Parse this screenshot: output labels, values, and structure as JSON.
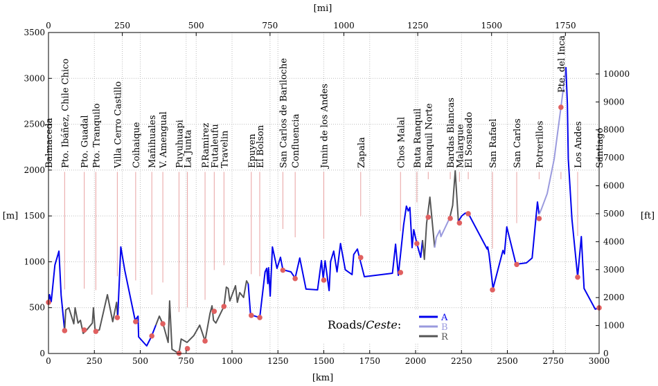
{
  "chart_data": {
    "type": "line",
    "title": "",
    "xlabel": "[km]",
    "x2label": "[mi]",
    "ylabel": "[m]",
    "y2label": "[ft]",
    "xlim": [
      0,
      3000
    ],
    "ylim": [
      0,
      3500
    ],
    "x_ticks": [
      0,
      250,
      500,
      750,
      1000,
      1250,
      1500,
      1750,
      2000,
      2250,
      2500,
      2750,
      3000
    ],
    "y_ticks": [
      0,
      500,
      1000,
      1500,
      2000,
      2500,
      3000,
      3500
    ],
    "x2_ticks_mi": [
      0,
      250,
      500,
      750,
      1000,
      1250,
      1500,
      1750
    ],
    "y2_ticks_ft": [
      0,
      1000,
      2000,
      3000,
      4000,
      5000,
      6000,
      7000,
      8000,
      9000,
      10000
    ],
    "grid": true,
    "legend": {
      "title": "Roads/",
      "title_italic": "Ceste",
      "title_suffix": ":",
      "placement": "bottom-center",
      "entries": [
        {
          "name": "A",
          "color": "#0000ee"
        },
        {
          "name": "B",
          "color": "#9a9ade"
        },
        {
          "name": "R",
          "color": "#555555"
        }
      ]
    },
    "colors": {
      "A": "#0000ee",
      "B": "#9a9ade",
      "R": "#555555",
      "marker": "#e06060",
      "marker_line": "#e8a0a0"
    },
    "profile": [
      [
        0,
        558,
        "A"
      ],
      [
        6,
        641,
        "A"
      ],
      [
        15,
        566,
        "A"
      ],
      [
        35,
        965,
        "A"
      ],
      [
        57,
        1116,
        "A"
      ],
      [
        69,
        634,
        "A"
      ],
      [
        88,
        249,
        "A"
      ],
      [
        94,
        475,
        "R"
      ],
      [
        111,
        498,
        "R"
      ],
      [
        138,
        324,
        "R"
      ],
      [
        145,
        498,
        "R"
      ],
      [
        161,
        332,
        "R"
      ],
      [
        174,
        362,
        "R"
      ],
      [
        189,
        219,
        "R"
      ],
      [
        208,
        256,
        "R"
      ],
      [
        239,
        332,
        "R"
      ],
      [
        245,
        498,
        "R"
      ],
      [
        254,
        249,
        "R"
      ],
      [
        277,
        256,
        "R"
      ],
      [
        321,
        641,
        "R"
      ],
      [
        350,
        347,
        "R"
      ],
      [
        371,
        558,
        "R"
      ],
      [
        377,
        385,
        "R"
      ],
      [
        394,
        1162,
        "A"
      ],
      [
        415,
        913,
        "A"
      ],
      [
        472,
        362,
        "A"
      ],
      [
        488,
        407,
        "A"
      ],
      [
        491,
        181,
        "A"
      ],
      [
        535,
        83,
        "A"
      ],
      [
        560,
        181,
        "A"
      ],
      [
        585,
        309,
        "A"
      ],
      [
        604,
        407,
        "R"
      ],
      [
        626,
        309,
        "R"
      ],
      [
        652,
        121,
        "R"
      ],
      [
        660,
        573,
        "R"
      ],
      [
        673,
        45,
        "R"
      ],
      [
        692,
        23,
        "R"
      ],
      [
        711,
        0,
        "R"
      ],
      [
        723,
        158,
        "R"
      ],
      [
        755,
        121,
        "R"
      ],
      [
        792,
        196,
        "R"
      ],
      [
        824,
        309,
        "R"
      ],
      [
        853,
        136,
        "R"
      ],
      [
        880,
        437,
        "R"
      ],
      [
        891,
        520,
        "R"
      ],
      [
        899,
        362,
        "R"
      ],
      [
        912,
        332,
        "R"
      ],
      [
        956,
        513,
        "R"
      ],
      [
        969,
        724,
        "R"
      ],
      [
        979,
        709,
        "R"
      ],
      [
        988,
        573,
        "R"
      ],
      [
        1019,
        739,
        "R"
      ],
      [
        1029,
        558,
        "R"
      ],
      [
        1042,
        664,
        "R"
      ],
      [
        1063,
        611,
        "R"
      ],
      [
        1079,
        792,
        "R"
      ],
      [
        1088,
        762,
        "R"
      ],
      [
        1101,
        422,
        "A"
      ],
      [
        1151,
        392,
        "A"
      ],
      [
        1180,
        890,
        "A"
      ],
      [
        1189,
        928,
        "A"
      ],
      [
        1195,
        762,
        "A"
      ],
      [
        1199,
        935,
        "A"
      ],
      [
        1208,
        626,
        "A"
      ],
      [
        1220,
        1162,
        "A"
      ],
      [
        1245,
        928,
        "A"
      ],
      [
        1264,
        1049,
        "A"
      ],
      [
        1277,
        913,
        "A"
      ],
      [
        1321,
        890,
        "A"
      ],
      [
        1344,
        822,
        "A"
      ],
      [
        1369,
        1041,
        "A"
      ],
      [
        1403,
        702,
        "A"
      ],
      [
        1466,
        694,
        "A"
      ],
      [
        1487,
        1013,
        "A"
      ],
      [
        1497,
        815,
        "A"
      ],
      [
        1507,
        1011,
        "A"
      ],
      [
        1529,
        686,
        "A"
      ],
      [
        1537,
        1003,
        "A"
      ],
      [
        1554,
        1116,
        "A"
      ],
      [
        1572,
        890,
        "A"
      ],
      [
        1591,
        1199,
        "A"
      ],
      [
        1617,
        913,
        "A"
      ],
      [
        1654,
        860,
        "A"
      ],
      [
        1663,
        1079,
        "A"
      ],
      [
        1683,
        1139,
        "A"
      ],
      [
        1692,
        1064,
        "A"
      ],
      [
        1721,
        837,
        "A"
      ],
      [
        1874,
        875,
        "A"
      ],
      [
        1891,
        1192,
        "A"
      ],
      [
        1906,
        852,
        "A"
      ],
      [
        1935,
        1403,
        "A"
      ],
      [
        1950,
        1607,
        "A"
      ],
      [
        1960,
        1554,
        "A"
      ],
      [
        1969,
        1592,
        "A"
      ],
      [
        1981,
        1154,
        "A"
      ],
      [
        1990,
        1350,
        "A"
      ],
      [
        2007,
        1199,
        "A"
      ],
      [
        2028,
        1049,
        "A"
      ],
      [
        2038,
        1237,
        "A"
      ],
      [
        2048,
        1026,
        "R"
      ],
      [
        2060,
        1418,
        "R"
      ],
      [
        2078,
        1705,
        "R"
      ],
      [
        2104,
        1154,
        "R"
      ],
      [
        2113,
        1267,
        "B"
      ],
      [
        2132,
        1343,
        "B"
      ],
      [
        2138,
        1275,
        "B"
      ],
      [
        2186,
        1478,
        "B"
      ],
      [
        2202,
        1614,
        "R"
      ],
      [
        2216,
        1991,
        "R"
      ],
      [
        2233,
        1441,
        "R"
      ],
      [
        2252,
        1501,
        "A"
      ],
      [
        2271,
        1531,
        "A"
      ],
      [
        2290,
        1516,
        "A"
      ],
      [
        2390,
        1139,
        "A"
      ],
      [
        2393,
        1162,
        "A"
      ],
      [
        2400,
        1086,
        "A"
      ],
      [
        2422,
        709,
        "A"
      ],
      [
        2476,
        1124,
        "A"
      ],
      [
        2484,
        1086,
        "A"
      ],
      [
        2497,
        1380,
        "A"
      ],
      [
        2547,
        973,
        "A"
      ],
      [
        2604,
        988,
        "A"
      ],
      [
        2635,
        1041,
        "A"
      ],
      [
        2664,
        1652,
        "A"
      ],
      [
        2673,
        1516,
        "A"
      ],
      [
        2686,
        1577,
        "B"
      ],
      [
        2717,
        1743,
        "B"
      ],
      [
        2755,
        2120,
        "B"
      ],
      [
        2792,
        2685,
        "B"
      ],
      [
        2812,
        3000,
        "B"
      ],
      [
        2819,
        3123,
        "B"
      ],
      [
        2827,
        2723,
        "A"
      ],
      [
        2832,
        2120,
        "A"
      ],
      [
        2852,
        1463,
        "A"
      ],
      [
        2883,
        837,
        "A"
      ],
      [
        2903,
        1275,
        "A"
      ],
      [
        2918,
        709,
        "A"
      ],
      [
        2979,
        483,
        "A"
      ],
      [
        3000,
        498,
        "A"
      ]
    ],
    "places": [
      {
        "name": "Balmaceda",
        "km": 0,
        "m": 558
      },
      {
        "name": "Pto. Ibáñez, Chile Chico",
        "km": 88,
        "m": 249
      },
      {
        "name": "Pto.  Guadal",
        "km": 195,
        "m": 256
      },
      {
        "name": "Pto.  Tranquilo",
        "km": 258,
        "m": 241
      },
      {
        "name": "Villa Cerro Castillo",
        "km": 375,
        "m": 392
      },
      {
        "name": "Coihaique",
        "km": 475,
        "m": 347
      },
      {
        "name": "Mañihuales",
        "km": 563,
        "m": 191
      },
      {
        "name": "V. Amengual",
        "km": 623,
        "m": 324
      },
      {
        "name": "Puyuhuapi",
        "km": 711,
        "m": 2
      },
      {
        "name": "La Junta",
        "km": 757,
        "m": 53
      },
      {
        "name": "P.Ramirez",
        "km": 853,
        "m": 136
      },
      {
        "name": "Futaleufu",
        "km": 903,
        "m": 460
      },
      {
        "name": "Travelin",
        "km": 956,
        "m": 513
      },
      {
        "name": "Epuyen",
        "km": 1105,
        "m": 415
      },
      {
        "name": "El Bolson",
        "km": 1151,
        "m": 392
      },
      {
        "name": "San Carlos de Bariloche",
        "km": 1277,
        "m": 908
      },
      {
        "name": "Confluencia",
        "km": 1344,
        "m": 817
      },
      {
        "name": "Junin de los Andes",
        "km": 1500,
        "m": 800
      },
      {
        "name": "Zapala",
        "km": 1701,
        "m": 1046
      },
      {
        "name": "Chos Malal",
        "km": 1918,
        "m": 883
      },
      {
        "name": "Buta Ranquil",
        "km": 2007,
        "m": 1199
      },
      {
        "name": "Ranquil Norte",
        "km": 2069,
        "m": 1486
      },
      {
        "name": "Bardas Blancas",
        "km": 2189,
        "m": 1473
      },
      {
        "name": "Malargue",
        "km": 2239,
        "m": 1423
      },
      {
        "name": "El Sosneado",
        "km": 2287,
        "m": 1524
      },
      {
        "name": "San Rafael",
        "km": 2419,
        "m": 694
      },
      {
        "name": "San Carlos",
        "km": 2551,
        "m": 971
      },
      {
        "name": "Potrerillos",
        "km": 2673,
        "m": 1471
      },
      {
        "name": "Pte.  del Inca",
        "km": 2792,
        "m": 2685
      },
      {
        "name": "Los Andes",
        "km": 2883,
        "m": 832
      },
      {
        "name": "Santiago",
        "km": 3000,
        "m": 498
      }
    ]
  }
}
